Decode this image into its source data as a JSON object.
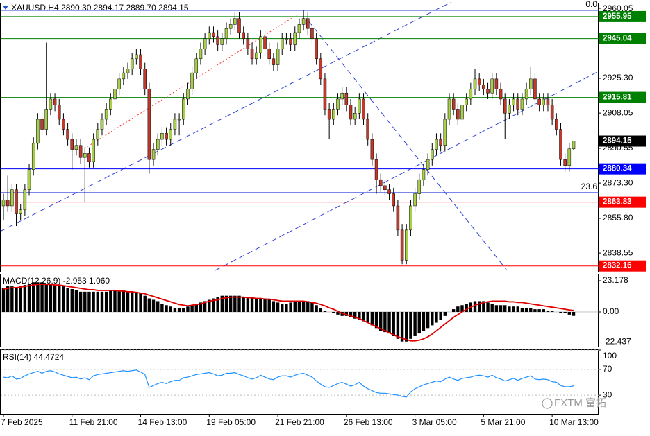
{
  "watermark": "FXTM 富拓",
  "chart_data": [
    {
      "type": "candlestick",
      "title": "XAUUSD,H4  2890.30 2894.17 2889.70 2894.15",
      "categories": [
        "7 Feb 2025",
        null,
        null,
        null,
        null,
        null,
        null,
        null,
        null,
        null,
        null,
        null,
        null,
        null,
        null,
        null,
        "11 Feb 21:00",
        null,
        null,
        null,
        null,
        null,
        null,
        null,
        null,
        null,
        null,
        null,
        null,
        null,
        null,
        null,
        "14 Feb 13:00",
        null,
        null,
        null,
        null,
        null,
        null,
        null,
        null,
        null,
        null,
        null,
        null,
        null,
        null,
        null,
        "19 Feb 05:00",
        null,
        null,
        null,
        null,
        null,
        null,
        null,
        null,
        null,
        null,
        null,
        null,
        null,
        null,
        null,
        "21 Feb 21:00",
        null,
        null,
        null,
        null,
        null,
        null,
        null,
        null,
        null,
        null,
        null,
        null,
        null,
        null,
        null,
        "26 Feb 13:00",
        null,
        null,
        null,
        null,
        null,
        null,
        null,
        null,
        null,
        null,
        null,
        null,
        null,
        null,
        null,
        "3 Mar 05:00",
        null,
        null,
        null,
        null,
        null,
        null,
        null,
        null,
        null,
        null,
        null,
        null,
        null,
        null,
        null,
        "5 Mar 21:00",
        null,
        null,
        null,
        null,
        null,
        null,
        null,
        null,
        null,
        null,
        null,
        null,
        null,
        null,
        null,
        "10 Mar 13:00",
        null,
        null,
        null,
        null,
        null
      ],
      "open": [
        2862,
        2865,
        2862,
        2870,
        2858,
        2860,
        2870,
        2880,
        2893,
        2905,
        2900,
        2910,
        2915,
        2912,
        2905,
        2900,
        2895,
        2890,
        2892,
        2886,
        2888,
        2884,
        2895,
        2900,
        2905,
        2910,
        2915,
        2920,
        2925,
        2928,
        2930,
        2935,
        2937,
        2930,
        2920,
        2885,
        2890,
        2895,
        2898,
        2895,
        2900,
        2905,
        2905,
        2915,
        2920,
        2928,
        2935,
        2940,
        2945,
        2948,
        2946,
        2942,
        2945,
        2950,
        2952,
        2955,
        2948,
        2945,
        2940,
        2935,
        2938,
        2946,
        2940,
        2935,
        2932,
        2940,
        2945,
        2945,
        2942,
        2948,
        2952,
        2955,
        2950,
        2945,
        2935,
        2925,
        2910,
        2905,
        2910,
        2915,
        2918,
        2912,
        2905,
        2908,
        2915,
        2905,
        2895,
        2885,
        2875,
        2872,
        2870,
        2868,
        2862,
        2850,
        2835,
        2850,
        2862,
        2868,
        2875,
        2880,
        2885,
        2890,
        2895,
        2892,
        2905,
        2915,
        2910,
        2905,
        2912,
        2915,
        2920,
        2925,
        2922,
        2920,
        2918,
        2925,
        2920,
        2915,
        2908,
        2912,
        2915,
        2910,
        2915,
        2920,
        2925,
        2915,
        2912,
        2915,
        2912,
        2905,
        2900,
        2885,
        2882,
        2890.3
      ],
      "high": [
        2868,
        2877,
        2873,
        2873,
        2863,
        2873,
        2883,
        2896,
        2908,
        2908,
        2943,
        2918,
        2918,
        2915,
        2908,
        2903,
        2898,
        2895,
        2895,
        2891,
        2891,
        2898,
        2903,
        2908,
        2913,
        2918,
        2923,
        2928,
        2931,
        2933,
        2938,
        2940,
        2940,
        2933,
        2923,
        2893,
        2898,
        2901,
        2901,
        2903,
        2908,
        2908,
        2918,
        2923,
        2931,
        2938,
        2943,
        2948,
        2951,
        2951,
        2949,
        2948,
        2953,
        2955,
        2958,
        2958,
        2951,
        2948,
        2943,
        2941,
        2949,
        2949,
        2943,
        2938,
        2943,
        2948,
        2948,
        2948,
        2951,
        2955,
        2959,
        2958,
        2953,
        2948,
        2938,
        2928,
        2913,
        2913,
        2918,
        2921,
        2921,
        2915,
        2911,
        2918,
        2918,
        2908,
        2898,
        2888,
        2878,
        2875,
        2873,
        2871,
        2865,
        2853,
        2853,
        2865,
        2871,
        2878,
        2883,
        2888,
        2893,
        2898,
        2898,
        2908,
        2918,
        2918,
        2913,
        2915,
        2918,
        2923,
        2930,
        2928,
        2925,
        2923,
        2928,
        2928,
        2923,
        2918,
        2915,
        2918,
        2918,
        2918,
        2923,
        2931,
        2928,
        2918,
        2918,
        2918,
        2915,
        2908,
        2903,
        2888,
        2893,
        2894.17
      ],
      "low": [
        2855,
        2859,
        2859,
        2852,
        2855,
        2857,
        2867,
        2877,
        2890,
        2897,
        2897,
        2907,
        2909,
        2902,
        2897,
        2892,
        2880,
        2887,
        2883,
        2864,
        2881,
        2881,
        2892,
        2897,
        2902,
        2907,
        2912,
        2917,
        2922,
        2925,
        2927,
        2932,
        2927,
        2917,
        2878,
        2882,
        2887,
        2892,
        2892,
        2892,
        2897,
        2897,
        2902,
        2912,
        2917,
        2925,
        2932,
        2937,
        2942,
        2943,
        2939,
        2939,
        2942,
        2947,
        2949,
        2945,
        2942,
        2937,
        2932,
        2932,
        2935,
        2937,
        2932,
        2929,
        2929,
        2937,
        2942,
        2939,
        2939,
        2945,
        2949,
        2947,
        2942,
        2932,
        2922,
        2907,
        2895,
        2902,
        2907,
        2912,
        2909,
        2902,
        2902,
        2905,
        2902,
        2892,
        2882,
        2868,
        2869,
        2867,
        2865,
        2859,
        2847,
        2833,
        2833,
        2847,
        2859,
        2865,
        2872,
        2877,
        2882,
        2887,
        2889,
        2889,
        2902,
        2907,
        2902,
        2902,
        2909,
        2912,
        2917,
        2919,
        2917,
        2915,
        2915,
        2917,
        2912,
        2895,
        2905,
        2909,
        2907,
        2907,
        2912,
        2917,
        2912,
        2909,
        2909,
        2909,
        2902,
        2897,
        2882,
        2879,
        2879,
        2889.7
      ],
      "close": [
        2865,
        2862,
        2870,
        2858,
        2860,
        2870,
        2880,
        2893,
        2905,
        2900,
        2910,
        2915,
        2912,
        2905,
        2900,
        2895,
        2890,
        2892,
        2886,
        2888,
        2884,
        2895,
        2900,
        2905,
        2910,
        2915,
        2920,
        2925,
        2928,
        2930,
        2935,
        2937,
        2930,
        2920,
        2885,
        2890,
        2895,
        2898,
        2895,
        2900,
        2905,
        2905,
        2915,
        2920,
        2928,
        2935,
        2940,
        2945,
        2948,
        2946,
        2942,
        2945,
        2950,
        2952,
        2955,
        2948,
        2945,
        2940,
        2935,
        2938,
        2946,
        2940,
        2935,
        2932,
        2940,
        2945,
        2945,
        2942,
        2948,
        2952,
        2955,
        2950,
        2945,
        2935,
        2925,
        2910,
        2905,
        2910,
        2915,
        2918,
        2912,
        2905,
        2908,
        2915,
        2905,
        2895,
        2885,
        2875,
        2872,
        2870,
        2868,
        2862,
        2850,
        2835,
        2850,
        2862,
        2868,
        2875,
        2880,
        2885,
        2890,
        2895,
        2892,
        2905,
        2915,
        2910,
        2905,
        2912,
        2915,
        2920,
        2925,
        2922,
        2920,
        2918,
        2925,
        2920,
        2915,
        2908,
        2912,
        2915,
        2910,
        2915,
        2920,
        2925,
        2915,
        2912,
        2915,
        2912,
        2905,
        2900,
        2885,
        2882,
        2890.3,
        2894.15
      ],
      "up_color": "#a8cf4a",
      "down_color": "#c0392b",
      "ylim": [
        2829.3,
        2962.8
      ],
      "yticks": [
        2960.05,
        {
          "value": 2925.3,
          "label": "2925.30"
        },
        2908.05,
        2890.55,
        {
          "value": 2873.3,
          "label": "2873.30"
        },
        {
          "value": 2855.8,
          "label": "2855.80"
        },
        2838.55
      ],
      "levels": [
        {
          "value": 2955.95,
          "color": "#008000"
        },
        {
          "value": 2945.04,
          "color": "#008000"
        },
        {
          "value": 2915.81,
          "color": "#008000"
        },
        {
          "value": 2894.15,
          "color": "#000000"
        },
        {
          "value": 2880.34,
          "color": "#0000ff"
        },
        {
          "value": 2863.83,
          "color": "#ff0000"
        },
        {
          "value": 2832.16,
          "color": "#ff0000"
        }
      ],
      "fib_levels": [
        {
          "label": "0.0",
          "value": 2959.0
        },
        {
          "label": "23.6",
          "value": 2868.6
        }
      ]
    },
    {
      "type": "macd",
      "label": "MACD(12,26,9) -2.953 1.060",
      "histogram": [
        18,
        19,
        19,
        18,
        19,
        20,
        21,
        22,
        22,
        22,
        21,
        21,
        20,
        20,
        19,
        18,
        17,
        16,
        15,
        15,
        15,
        15,
        15,
        15,
        15,
        16,
        16,
        16,
        16,
        15,
        15,
        15,
        14,
        12,
        10,
        9,
        8,
        6,
        5,
        4,
        3,
        3,
        3,
        4,
        5,
        6,
        7,
        8,
        9,
        10,
        11,
        12,
        12,
        12,
        12,
        12,
        11,
        11,
        11,
        10,
        10,
        10,
        9,
        8,
        7,
        6,
        6,
        7,
        8,
        8,
        8,
        8,
        7,
        5,
        3,
        1,
        0,
        -1,
        -2,
        -3,
        -3,
        -4,
        -5,
        -6,
        -7,
        -8,
        -10,
        -12,
        -14,
        -15,
        -16,
        -18,
        -20,
        -22,
        -22,
        -20,
        -18,
        -16,
        -14,
        -12,
        -10,
        -8,
        -6,
        -3,
        0,
        2,
        4,
        5,
        6,
        7,
        8,
        8,
        8,
        7,
        6,
        5,
        5,
        5,
        4,
        4,
        4,
        3,
        3,
        3,
        2,
        2,
        2,
        1,
        1,
        0,
        -1,
        -1,
        -2,
        -2.953
      ],
      "signal": [
        17,
        17.5,
        18,
        18,
        18.5,
        19,
        19.5,
        20,
        20.5,
        20.5,
        20.5,
        20.5,
        20,
        20,
        19.5,
        19,
        18.5,
        18,
        17.5,
        17,
        16.5,
        16.5,
        16,
        16,
        16,
        16,
        16,
        15.5,
        15.5,
        15,
        15,
        14.5,
        14,
        13.5,
        12.5,
        11.5,
        10.5,
        9.5,
        8.5,
        7.5,
        6.5,
        5.5,
        5,
        4.5,
        5,
        5.5,
        6,
        7,
        8,
        8.5,
        9,
        10,
        10.5,
        11,
        11,
        11,
        11,
        10.5,
        10.5,
        10,
        10,
        9.5,
        9.5,
        9,
        8.5,
        8,
        8,
        8,
        8,
        8,
        8,
        7.5,
        7,
        6.5,
        5.5,
        4.5,
        3,
        2,
        0.5,
        -1,
        -2,
        -3,
        -4,
        -5,
        -6.5,
        -8,
        -9.5,
        -11,
        -12.5,
        -14,
        -15.5,
        -17,
        -18.5,
        -19.5,
        -20.5,
        -21.5,
        -21.5,
        -21,
        -20,
        -18.5,
        -16.5,
        -14,
        -11.5,
        -9,
        -6.5,
        -4,
        -2,
        0,
        2,
        3.5,
        5,
        6,
        7,
        7.5,
        8,
        8,
        8,
        8,
        7.5,
        7.5,
        7,
        7,
        6.5,
        6,
        5.5,
        5,
        4.5,
        4,
        3.5,
        3,
        2.5,
        2,
        1.5,
        1.06
      ],
      "histogram_color": "#000000",
      "signal_color": "#e00000",
      "ylim": [
        -25.75,
        27.8
      ],
      "yticks": [
        23.178,
        {
          "value": 0,
          "label": "0.00"
        },
        -22.437
      ]
    },
    {
      "type": "line",
      "label": "RSI(14) 44.4724",
      "values": [
        58,
        57,
        60,
        55,
        56,
        60,
        63,
        65,
        67,
        64,
        67,
        68,
        66,
        63,
        61,
        59,
        57,
        58,
        55,
        57,
        54,
        60,
        62,
        63,
        64,
        65,
        66,
        67,
        68,
        67,
        68,
        69,
        66,
        62,
        42,
        45,
        48,
        50,
        48,
        51,
        53,
        53,
        57,
        58,
        60,
        62,
        63,
        64,
        65,
        63,
        60,
        61,
        64,
        64,
        65,
        62,
        60,
        57,
        55,
        57,
        61,
        58,
        55,
        54,
        58,
        60,
        60,
        58,
        61,
        63,
        64,
        61,
        58,
        52,
        47,
        43,
        42,
        45,
        48,
        50,
        47,
        44,
        46,
        50,
        44,
        40,
        37,
        34,
        33,
        33,
        32,
        31,
        30,
        28,
        27,
        35,
        40,
        43,
        46,
        48,
        50,
        52,
        51,
        55,
        58,
        55,
        53,
        56,
        57,
        58,
        60,
        61,
        60,
        58,
        61,
        57,
        55,
        52,
        54,
        56,
        53,
        56,
        58,
        60,
        55,
        54,
        55,
        54,
        51,
        50,
        45,
        43,
        43,
        44.4724
      ],
      "color": "#1e90ff",
      "ylim": [
        0,
        100
      ],
      "yticks": [
        100,
        70,
        30
      ],
      "grid": true
    }
  ]
}
